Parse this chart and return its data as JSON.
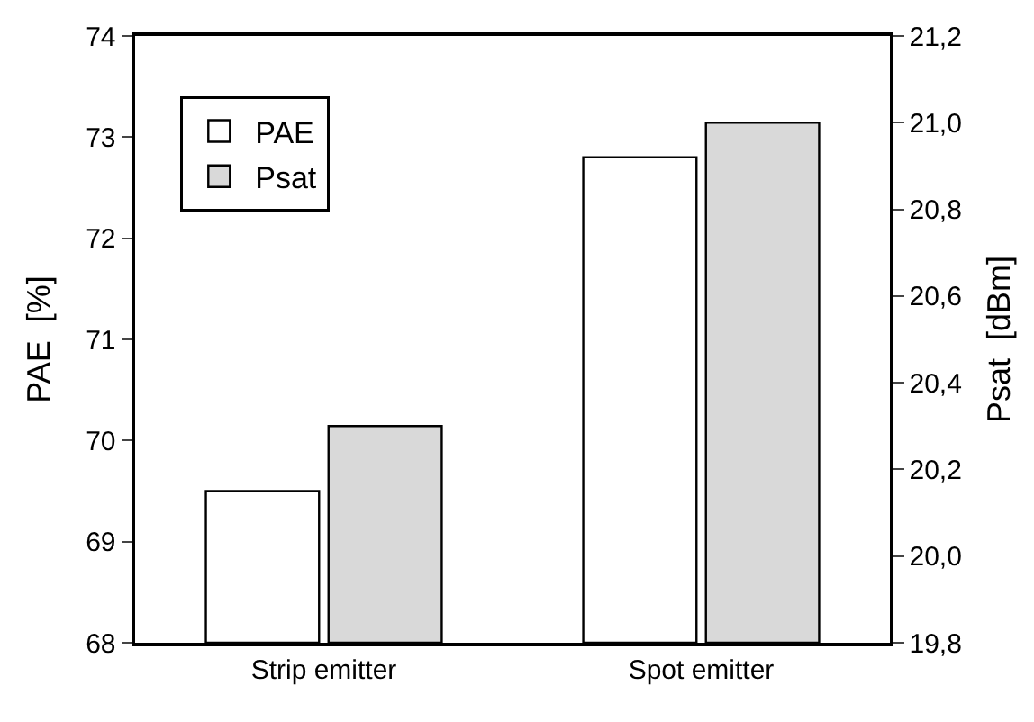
{
  "chart_data": {
    "type": "bar",
    "categories": [
      "Strip emitter",
      "Spot emitter"
    ],
    "ylabel": "PAE  [%]",
    "y2label": "Psat  [dBm]",
    "series": [
      {
        "name": "PAE",
        "color": "#ffffff",
        "values": [
          69.5,
          72.8
        ]
      },
      {
        "name": "Psat",
        "color": "#d9d9d9",
        "values": [
          20.3,
          21.0
        ],
        "axis": "y2"
      }
    ],
    "ylim": [
      68,
      74
    ],
    "yticks": [
      68,
      69,
      70,
      71,
      72,
      73,
      74
    ],
    "y2lim": [
      19.8,
      21.2
    ],
    "y2ticks": [
      {
        "value": 19.8,
        "label": "19,8"
      },
      {
        "value": 20.0,
        "label": "20,0"
      },
      {
        "value": 20.2,
        "label": "20,2"
      },
      {
        "value": 20.4,
        "label": "20,4"
      },
      {
        "value": 20.6,
        "label": "20,6"
      },
      {
        "value": 20.8,
        "label": "20,8"
      },
      {
        "value": 21.0,
        "label": "21,0"
      },
      {
        "value": 21.2,
        "label": "21,2"
      }
    ],
    "legend": "top left",
    "grid": false
  }
}
